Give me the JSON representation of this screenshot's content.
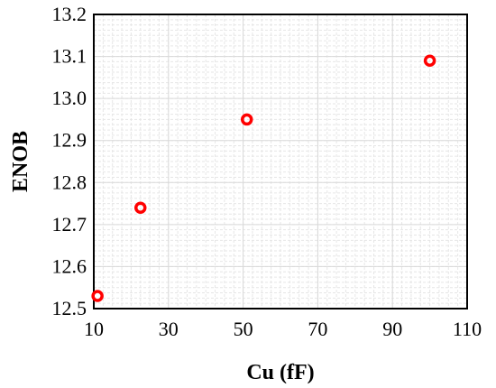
{
  "chart_data": {
    "type": "scatter",
    "title": "",
    "xlabel": "Cu (fF)",
    "ylabel": "ENOB",
    "xlim": [
      10,
      110
    ],
    "ylim": [
      12.5,
      13.2
    ],
    "x_ticks": [
      "10",
      "30",
      "50",
      "70",
      "90",
      "110"
    ],
    "y_ticks": [
      "12.5",
      "12.6",
      "12.7",
      "12.8",
      "12.9",
      "13.0",
      "13.1",
      "13.2"
    ],
    "grid": true,
    "marker": "open-circle",
    "marker_color": "#ff0000",
    "series": [
      {
        "x": [
          11,
          22.5,
          51,
          100
        ],
        "y": [
          12.53,
          12.74,
          12.95,
          13.09
        ]
      }
    ]
  }
}
